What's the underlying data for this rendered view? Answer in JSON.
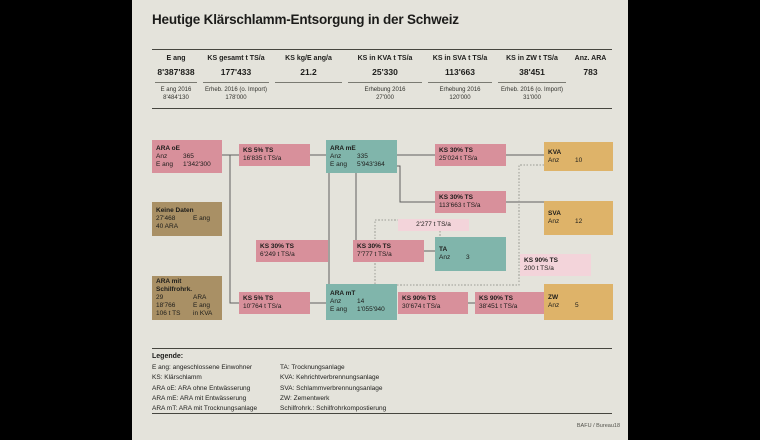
{
  "title": "Heutige Klärschlamm-Entsorgung in der Schweiz",
  "colors": {
    "background": "#000000",
    "panel": "#e4e3db",
    "pink": "#d8909b",
    "light_pink": "#f3d4da",
    "teal": "#80b5ab",
    "gold": "#deb369",
    "brown": "#a99065",
    "line": "#5f5f5f",
    "dotted_line": "#9c9c96",
    "text": "#1c1c1a"
  },
  "table": {
    "columns": [
      {
        "header": "E ang",
        "value": "8'387'838",
        "sub_label": "E ang 2016",
        "sub_value": "8'484'130"
      },
      {
        "header": "KS gesamt t TS/a",
        "value": "177'433",
        "sub_label": "Erheb. 2016 (o. Import)",
        "sub_value": "178'000"
      },
      {
        "header": "KS kg/E ang/a",
        "value": "21.2",
        "sub_label": "",
        "sub_value": ""
      },
      {
        "header": "KS in KVA t TS/a",
        "value": "25'330",
        "sub_label": "Erhebung 2016",
        "sub_value": "27'000"
      },
      {
        "header": "KS in SVA t TS/a",
        "value": "113'663",
        "sub_label": "Erhebung 2016",
        "sub_value": "120'000"
      },
      {
        "header": "KS in ZW t TS/a",
        "value": "38'451",
        "sub_label": "Erheb. 2016 (o. Import)",
        "sub_value": "31'000"
      },
      {
        "header": "Anz. ARA",
        "value": "783",
        "sub_label": "",
        "sub_value": ""
      }
    ]
  },
  "diagram": {
    "nodes": [
      {
        "id": "ara-oe",
        "type": "pink",
        "title": "ARA oE",
        "rows": [
          [
            "Anz",
            "365"
          ],
          [
            "E ang",
            "1'342'300"
          ]
        ]
      },
      {
        "id": "ks5-16835",
        "type": "pink",
        "title": "KS 5% TS",
        "rows": [
          [
            "16'835 t TS/a"
          ]
        ]
      },
      {
        "id": "ara-me",
        "type": "teal",
        "title": "ARA mE",
        "rows": [
          [
            "Anz",
            "335"
          ],
          [
            "E ang",
            "5'943'364"
          ]
        ]
      },
      {
        "id": "ks30-25024",
        "type": "pink",
        "title": "KS 30% TS",
        "rows": [
          [
            "25'024 t TS/a"
          ]
        ]
      },
      {
        "id": "kva",
        "type": "gold",
        "title": "KVA",
        "rows": [
          [
            "Anz",
            "10"
          ]
        ]
      },
      {
        "id": "keine-daten",
        "type": "brown",
        "title": "Keine Daten",
        "rows": [
          [
            "27'468",
            "E ang"
          ],
          [
            "40 ARA"
          ]
        ]
      },
      {
        "id": "ks30-113663",
        "type": "pink",
        "title": "KS 30% TS",
        "rows": [
          [
            "113'663 t TS/a"
          ]
        ]
      },
      {
        "id": "sva",
        "type": "gold",
        "title": "SVA",
        "rows": [
          [
            "Anz",
            "12"
          ]
        ]
      },
      {
        "id": "label-2277",
        "type": "lightpink",
        "title": "",
        "rows": [
          [
            "2'277 t TS/a"
          ]
        ]
      },
      {
        "id": "ks30-6249",
        "type": "pink",
        "title": "KS 30% TS",
        "rows": [
          [
            "6'249 t TS/a"
          ]
        ]
      },
      {
        "id": "ks30-7777",
        "type": "pink",
        "title": "KS 30% TS",
        "rows": [
          [
            "7'777 t TS/a"
          ]
        ]
      },
      {
        "id": "ta",
        "type": "teal",
        "title": "TA",
        "rows": [
          [
            "Anz",
            "3"
          ]
        ]
      },
      {
        "id": "ks90-200",
        "type": "lightpink",
        "title": "KS 90% TS",
        "rows": [
          [
            "200 t TS/a"
          ]
        ]
      },
      {
        "id": "ara-schilf",
        "type": "brown",
        "title": "ARA mit Schilfrohrk.",
        "rows": [
          [
            "29",
            "ARA"
          ],
          [
            "18'766",
            "E ang"
          ],
          [
            "106 t TS",
            "in KVA"
          ]
        ]
      },
      {
        "id": "ks5-10764",
        "type": "pink",
        "title": "KS 5% TS",
        "rows": [
          [
            "10'764 t TS/a"
          ]
        ]
      },
      {
        "id": "ara-mt",
        "type": "teal",
        "title": "ARA mT",
        "rows": [
          [
            "Anz",
            "14"
          ],
          [
            "E ang",
            "1'055'940"
          ]
        ]
      },
      {
        "id": "ks90-30674",
        "type": "pink",
        "title": "KS 90% TS",
        "rows": [
          [
            "30'674 t TS/a"
          ]
        ]
      },
      {
        "id": "ks90-38451",
        "type": "pink",
        "title": "KS 90% TS",
        "rows": [
          [
            "38'451 t TS/a"
          ]
        ]
      },
      {
        "id": "zw",
        "type": "gold",
        "title": "ZW",
        "rows": [
          [
            "Anz",
            "5"
          ]
        ]
      }
    ]
  },
  "legend": {
    "heading": "Legende:",
    "col1": [
      "E ang: angeschlossene Einwohner",
      "KS: Klärschlamm",
      "ARA oE: ARA ohne Entwässerung",
      "ARA mE: ARA mit Entwässerung",
      "ARA mT: ARA mit Trocknungsanlage"
    ],
    "col2": [
      "TA: Trocknungsanlage",
      "KVA: Kehrichtverbrennungsanlage",
      "SVA: Schlammverbrennungsanlage",
      "ZW: Zementwerk",
      "Schilfrohrk.: Schilfrohrkompostierung"
    ]
  },
  "footer": "BAFU / Bureau18"
}
